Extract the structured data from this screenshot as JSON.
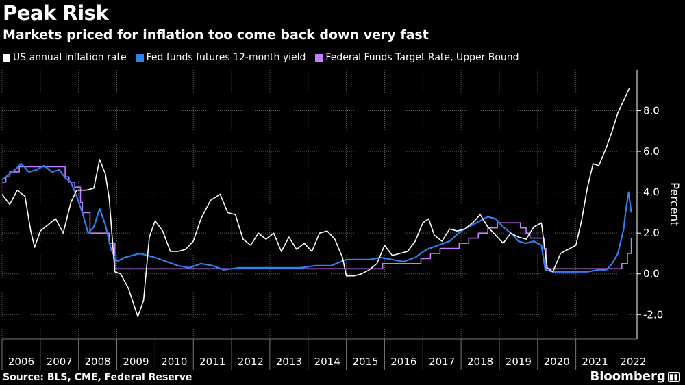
{
  "header": {
    "title": "Peak Risk",
    "subtitle": "Markets priced for inflation too come back down very fast"
  },
  "legend": [
    {
      "label": "US annual inflation rate",
      "color": "#ffffff"
    },
    {
      "label": "Fed funds futures 12-month yield",
      "color": "#2f80ed"
    },
    {
      "label": "Federal Funds Target Rate, Upper Bound",
      "color": "#c77dff"
    }
  ],
  "footer": {
    "source": "Source: BLS, CME, Federal Reserve",
    "brand": "Bloomberg",
    "brand_icon": "bar-chart-icon"
  },
  "chart_data": {
    "type": "line",
    "title": "Peak Risk",
    "subtitle": "Markets priced for inflation too come back down very fast",
    "ylabel": "Percent",
    "ylim": [
      -3.2,
      10
    ],
    "yticks": [
      -2.0,
      0.0,
      2.0,
      4.0,
      6.0,
      8.0
    ],
    "ytick_labels": [
      "-2.0",
      "0.0",
      "2.0",
      "4.0",
      "6.0",
      "8.0"
    ],
    "xlim": [
      2006.0,
      2022.6
    ],
    "xticks": [
      "2006",
      "2007",
      "2008",
      "2009",
      "2010",
      "2011",
      "2012",
      "2013",
      "2014",
      "2015",
      "2016",
      "2017",
      "2018",
      "2019",
      "2020",
      "2021",
      "2022"
    ],
    "grid": true,
    "legend_position": "top-left",
    "series": [
      {
        "name": "US annual inflation rate",
        "color": "#ffffff",
        "x": [
          2006.0,
          2006.2,
          2006.4,
          2006.6,
          2006.75,
          2006.85,
          2007.0,
          2007.2,
          2007.4,
          2007.6,
          2007.8,
          2007.95,
          2008.2,
          2008.4,
          2008.55,
          2008.7,
          2008.8,
          2008.95,
          2009.1,
          2009.3,
          2009.55,
          2009.7,
          2009.85,
          2010.0,
          2010.2,
          2010.4,
          2010.6,
          2010.8,
          2011.0,
          2011.2,
          2011.45,
          2011.7,
          2011.9,
          2012.1,
          2012.3,
          2012.5,
          2012.7,
          2012.9,
          2013.1,
          2013.3,
          2013.5,
          2013.7,
          2013.9,
          2014.1,
          2014.3,
          2014.5,
          2014.7,
          2014.9,
          2015.0,
          2015.2,
          2015.4,
          2015.6,
          2015.8,
          2016.0,
          2016.2,
          2016.4,
          2016.6,
          2016.8,
          2017.0,
          2017.15,
          2017.3,
          2017.5,
          2017.7,
          2017.9,
          2018.1,
          2018.3,
          2018.5,
          2018.7,
          2018.9,
          2019.1,
          2019.3,
          2019.5,
          2019.7,
          2019.9,
          2020.1,
          2020.25,
          2020.4,
          2020.6,
          2020.8,
          2021.0,
          2021.15,
          2021.3,
          2021.45,
          2021.6,
          2021.8,
          2021.95,
          2022.1,
          2022.25,
          2022.4
        ],
        "values": [
          3.9,
          3.4,
          4.1,
          3.8,
          2.1,
          1.3,
          2.1,
          2.4,
          2.7,
          2.0,
          3.5,
          4.1,
          4.1,
          4.2,
          5.6,
          4.9,
          3.7,
          0.1,
          0.0,
          -0.7,
          -2.1,
          -1.3,
          1.8,
          2.6,
          2.1,
          1.1,
          1.1,
          1.2,
          1.6,
          2.7,
          3.6,
          3.9,
          3.0,
          2.9,
          1.7,
          1.4,
          2.0,
          1.7,
          2.0,
          1.1,
          1.8,
          1.2,
          1.5,
          1.1,
          2.0,
          2.1,
          1.7,
          0.8,
          -0.1,
          -0.1,
          0.0,
          0.2,
          0.5,
          1.4,
          0.9,
          1.0,
          1.1,
          1.6,
          2.5,
          2.7,
          1.9,
          1.6,
          2.2,
          2.1,
          2.2,
          2.5,
          2.9,
          2.3,
          1.9,
          1.5,
          2.0,
          1.8,
          1.7,
          2.3,
          2.5,
          0.3,
          0.1,
          1.0,
          1.2,
          1.4,
          2.6,
          4.2,
          5.4,
          5.3,
          6.2,
          7.0,
          7.9,
          8.5,
          9.1
        ]
      },
      {
        "name": "Fed funds futures 12-month yield",
        "color": "#2f80ed",
        "x": [
          2006.0,
          2006.2,
          2006.4,
          2006.5,
          2006.7,
          2006.9,
          2007.1,
          2007.3,
          2007.5,
          2007.65,
          2007.8,
          2007.95,
          2008.1,
          2008.25,
          2008.4,
          2008.55,
          2008.7,
          2008.85,
          2009.0,
          2009.2,
          2009.4,
          2009.6,
          2009.8,
          2010.0,
          2010.3,
          2010.6,
          2010.9,
          2011.2,
          2011.5,
          2011.8,
          2012.2,
          2012.6,
          2013.0,
          2013.4,
          2013.8,
          2014.2,
          2014.6,
          2015.0,
          2015.3,
          2015.6,
          2015.9,
          2016.2,
          2016.5,
          2016.8,
          2017.1,
          2017.4,
          2017.7,
          2018.0,
          2018.3,
          2018.5,
          2018.7,
          2018.9,
          2019.1,
          2019.3,
          2019.5,
          2019.7,
          2019.9,
          2020.1,
          2020.2,
          2020.4,
          2020.7,
          2021.0,
          2021.3,
          2021.6,
          2021.8,
          2021.95,
          2022.1,
          2022.25,
          2022.3,
          2022.38,
          2022.45
        ],
        "values": [
          4.6,
          4.9,
          5.2,
          5.4,
          5.0,
          5.1,
          5.3,
          5.0,
          5.1,
          4.7,
          4.5,
          3.8,
          3.0,
          2.0,
          2.3,
          3.2,
          2.4,
          1.2,
          0.6,
          0.8,
          0.9,
          1.0,
          0.9,
          0.8,
          0.6,
          0.4,
          0.3,
          0.5,
          0.4,
          0.2,
          0.3,
          0.3,
          0.3,
          0.3,
          0.3,
          0.4,
          0.4,
          0.7,
          0.7,
          0.7,
          0.8,
          0.7,
          0.6,
          0.8,
          1.2,
          1.4,
          1.6,
          2.1,
          2.4,
          2.6,
          2.8,
          2.7,
          2.3,
          2.0,
          1.6,
          1.5,
          1.6,
          1.4,
          0.2,
          0.1,
          0.1,
          0.1,
          0.1,
          0.2,
          0.2,
          0.5,
          1.0,
          2.2,
          3.0,
          4.0,
          3.0
        ]
      },
      {
        "name": "Federal Funds Target Rate, Upper Bound",
        "color": "#c77dff",
        "step": true,
        "x": [
          2006.0,
          2006.1,
          2006.2,
          2006.35,
          2006.45,
          2007.65,
          2007.75,
          2007.9,
          2008.05,
          2008.1,
          2008.3,
          2008.8,
          2008.95,
          2015.95,
          2016.95,
          2017.2,
          2017.45,
          2017.95,
          2018.2,
          2018.45,
          2018.7,
          2018.95,
          2019.55,
          2019.7,
          2019.8,
          2020.17,
          2020.22,
          2022.2,
          2022.35,
          2022.45
        ],
        "values": [
          4.5,
          4.75,
          5.0,
          5.0,
          5.25,
          4.75,
          4.5,
          4.25,
          3.5,
          3.0,
          2.0,
          1.5,
          0.25,
          0.5,
          0.75,
          1.0,
          1.25,
          1.5,
          1.75,
          2.0,
          2.25,
          2.5,
          2.25,
          2.0,
          1.75,
          1.25,
          0.25,
          0.5,
          1.0,
          1.75
        ]
      }
    ]
  }
}
